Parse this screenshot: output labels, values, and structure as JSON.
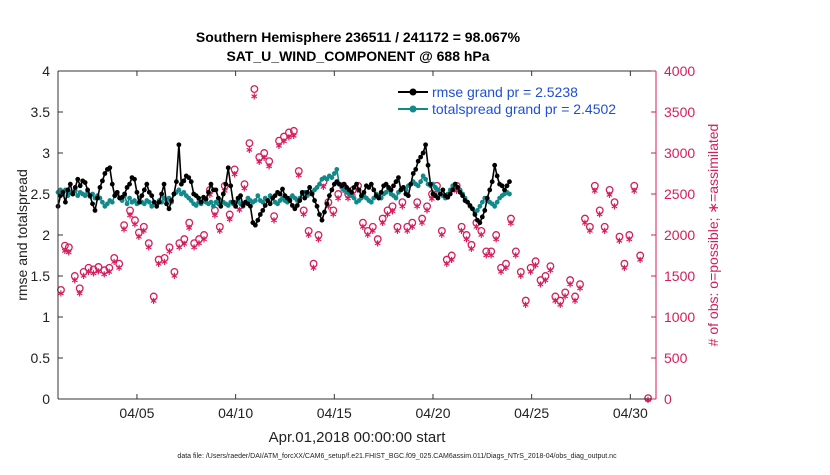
{
  "chart_data": {
    "type": "line",
    "title_line1": "Southern Hemisphere 236511 / 241172 = 98.067%",
    "title_line2": "SAT_U_WIND_COMPONENT @ 688 hPa",
    "xlabel": "Apr.01,2018 00:00:00 start",
    "ylabel_left": "rmse and totalspread",
    "ylabel_right": "# of obs: o=possible; ∗=assimilated",
    "xlim": [
      1,
      31.3
    ],
    "ylim_left": [
      0,
      4
    ],
    "ylim_right": [
      0,
      4000
    ],
    "x_ticks": [
      {
        "v": 5,
        "label": "04/05"
      },
      {
        "v": 10,
        "label": "04/10"
      },
      {
        "v": 15,
        "label": "04/15"
      },
      {
        "v": 20,
        "label": "04/20"
      },
      {
        "v": 25,
        "label": "04/25"
      },
      {
        "v": 30,
        "label": "04/30"
      }
    ],
    "y_ticks_left": [
      "0",
      "0.5",
      "1",
      "1.5",
      "2",
      "2.5",
      "3",
      "3.5",
      "4"
    ],
    "y_tick_values_left": [
      0,
      0.5,
      1,
      1.5,
      2,
      2.5,
      3,
      3.5,
      4
    ],
    "y_ticks_right": [
      "0",
      "500",
      "1000",
      "1500",
      "2000",
      "2500",
      "3000",
      "3500",
      "4000"
    ],
    "y_tick_values_right": [
      0,
      500,
      1000,
      1500,
      2000,
      2500,
      3000,
      3500,
      4000
    ],
    "colors": {
      "rmse": "#000000",
      "spread": "#12898a",
      "obs": "#d51e5b",
      "legend_text": "#1f4fd8"
    },
    "series": [
      {
        "name": "rmse grand pr = 2.5238",
        "axis": "left",
        "x_start": 1.0,
        "dx": 0.125,
        "values": [
          2.35,
          2.48,
          2.52,
          2.4,
          2.55,
          2.62,
          2.5,
          2.58,
          2.68,
          2.6,
          2.66,
          2.64,
          2.55,
          2.48,
          2.38,
          2.3,
          2.45,
          2.58,
          2.66,
          2.75,
          2.8,
          2.82,
          2.62,
          2.48,
          2.52,
          2.45,
          2.46,
          2.5,
          2.58,
          2.62,
          2.7,
          2.68,
          2.52,
          2.4,
          2.48,
          2.55,
          2.62,
          2.52,
          2.48,
          2.4,
          2.35,
          2.4,
          2.5,
          2.62,
          2.38,
          2.32,
          2.42,
          2.5,
          2.65,
          3.1,
          2.62,
          2.66,
          2.72,
          2.7,
          2.65,
          2.5,
          2.48,
          2.45,
          2.4,
          2.46,
          2.44,
          2.52,
          2.62,
          2.55,
          2.55,
          2.45,
          2.35,
          2.5,
          2.62,
          2.82,
          2.6,
          2.4,
          2.35,
          2.45,
          2.48,
          2.36,
          2.4,
          2.38,
          2.35,
          2.15,
          2.12,
          2.18,
          2.25,
          2.3,
          2.36,
          2.42,
          2.38,
          2.45,
          2.48,
          2.52,
          2.5,
          2.56,
          2.48,
          2.45,
          2.42,
          2.36,
          2.32,
          2.36,
          2.42,
          2.52,
          2.45,
          2.52,
          2.58,
          2.5,
          2.42,
          2.35,
          2.25,
          2.18,
          2.28,
          2.38,
          2.48,
          2.55,
          2.62,
          2.65,
          2.62,
          2.6,
          2.62,
          2.58,
          2.55,
          2.52,
          2.58,
          2.62,
          2.55,
          2.48,
          2.52,
          2.6,
          2.58,
          2.62,
          2.55,
          2.48,
          2.45,
          2.52,
          2.6,
          2.62,
          2.58,
          2.55,
          2.6,
          2.65,
          2.7,
          2.55,
          2.58,
          2.5,
          2.48,
          2.62,
          2.75,
          2.8,
          2.9,
          2.95,
          3.0,
          3.1,
          2.85,
          2.62,
          2.5,
          2.48,
          2.45,
          2.5,
          2.55,
          2.48,
          2.46,
          2.5,
          2.55,
          2.62,
          2.58,
          2.52,
          2.48,
          2.42,
          2.4,
          2.36,
          2.32,
          2.25,
          2.18,
          2.15,
          2.22,
          2.3,
          2.45,
          2.55,
          2.65,
          2.85,
          2.72,
          2.62,
          2.6,
          2.55,
          2.6,
          2.65
        ]
      },
      {
        "name": "totalspread grand pr = 2.4502",
        "axis": "left",
        "x_start": 1.0,
        "dx": 0.125,
        "values": [
          2.52,
          2.55,
          2.5,
          2.55,
          2.48,
          2.52,
          2.5,
          2.54,
          2.48,
          2.52,
          2.5,
          2.48,
          2.52,
          2.47,
          2.5,
          2.45,
          2.48,
          2.45,
          2.4,
          2.35,
          2.38,
          2.42,
          2.4,
          2.48,
          2.5,
          2.45,
          2.42,
          2.48,
          2.38,
          2.45,
          2.4,
          2.42,
          2.38,
          2.45,
          2.4,
          2.38,
          2.42,
          2.4,
          2.35,
          2.4,
          2.38,
          2.42,
          2.4,
          2.45,
          2.42,
          2.45,
          2.4,
          2.5,
          2.52,
          2.55,
          2.5,
          2.52,
          2.48,
          2.45,
          2.42,
          2.38,
          2.36,
          2.4,
          2.38,
          2.42,
          2.4,
          2.38,
          2.4,
          2.35,
          2.4,
          2.38,
          2.42,
          2.4,
          2.38,
          2.36,
          2.4,
          2.38,
          2.4,
          2.42,
          2.38,
          2.35,
          2.4,
          2.45,
          2.42,
          2.4,
          2.42,
          2.48,
          2.42,
          2.4,
          2.45,
          2.42,
          2.48,
          2.45,
          2.4,
          2.38,
          2.42,
          2.45,
          2.42,
          2.4,
          2.45,
          2.48,
          2.45,
          2.42,
          2.45,
          2.5,
          2.52,
          2.48,
          2.5,
          2.52,
          2.55,
          2.58,
          2.62,
          2.68,
          2.7,
          2.68,
          2.72,
          2.7,
          2.75,
          2.8,
          2.62,
          2.58,
          2.55,
          2.52,
          2.5,
          2.48,
          2.45,
          2.4,
          2.42,
          2.45,
          2.48,
          2.45,
          2.42,
          2.4,
          2.45,
          2.5,
          2.48,
          2.45,
          2.5,
          2.52,
          2.55,
          2.5,
          2.48,
          2.45,
          2.52,
          2.55,
          2.58,
          2.55,
          2.6,
          2.62,
          2.65,
          2.62,
          2.6,
          2.65,
          2.72,
          2.68,
          2.62,
          2.6,
          2.62,
          2.58,
          2.55,
          2.5,
          2.48,
          2.45,
          2.5,
          2.55,
          2.6,
          2.62,
          2.58,
          2.55,
          2.5,
          2.45,
          2.4,
          2.35,
          2.32,
          2.28,
          2.3,
          2.35,
          2.4,
          2.45,
          2.42,
          2.4,
          2.38,
          2.35,
          2.4,
          2.45,
          2.48,
          2.5,
          2.52,
          2.5
        ]
      },
      {
        "name": "obs_possible",
        "axis": "right",
        "x": [
          1.15,
          1.35,
          1.55,
          1.85,
          2.1,
          2.3,
          2.55,
          2.8,
          3.05,
          3.35,
          3.6,
          3.85,
          4.1,
          4.35,
          4.65,
          4.9,
          5.1,
          5.35,
          5.6,
          5.85,
          6.1,
          6.4,
          6.65,
          6.9,
          7.15,
          7.4,
          7.65,
          7.9,
          8.15,
          8.4,
          8.7,
          8.95,
          9.2,
          9.45,
          9.7,
          9.95,
          10.2,
          10.45,
          10.7,
          10.95,
          11.2,
          11.45,
          11.7,
          11.95,
          12.2,
          12.45,
          12.7,
          12.95,
          13.2,
          13.45,
          13.7,
          13.95,
          14.2,
          14.45,
          14.7,
          14.95,
          15.2,
          15.45,
          15.7,
          15.95,
          16.2,
          16.45,
          16.7,
          16.95,
          17.2,
          17.45,
          17.7,
          17.95,
          18.2,
          18.45,
          18.7,
          18.95,
          19.2,
          19.45,
          19.7,
          19.95,
          20.2,
          20.45,
          20.7,
          20.95,
          21.2,
          21.45,
          21.7,
          21.95,
          22.2,
          22.45,
          22.7,
          22.95,
          23.2,
          23.45,
          23.7,
          23.95,
          24.2,
          24.45,
          24.7,
          24.95,
          25.2,
          25.45,
          25.7,
          25.95,
          26.2,
          26.45,
          26.7,
          26.95,
          27.2,
          27.45,
          27.7,
          27.95,
          28.2,
          28.45,
          28.7,
          28.95,
          29.2,
          29.45,
          29.7,
          29.95,
          30.2,
          30.5,
          30.9
        ],
        "values": [
          1330,
          1870,
          1850,
          1500,
          1350,
          1550,
          1600,
          1580,
          1610,
          1570,
          1600,
          1720,
          1650,
          2120,
          2300,
          2180,
          2030,
          2100,
          1900,
          1250,
          1700,
          1720,
          1850,
          1550,
          1900,
          1950,
          2150,
          1900,
          1950,
          2000,
          2550,
          2300,
          2100,
          2600,
          2250,
          2800,
          2360,
          2620,
          3120,
          3780,
          2950,
          3000,
          2900,
          2230,
          3150,
          3200,
          3250,
          3270,
          2780,
          2300,
          2050,
          1650,
          2000,
          2650,
          2400,
          2300,
          2500,
          2600,
          2500,
          2550,
          2600,
          2150,
          2050,
          2100,
          1950,
          2200,
          2300,
          2350,
          2100,
          2400,
          2100,
          2150,
          2400,
          2200,
          2350,
          2500,
          2600,
          2050,
          1700,
          1750,
          2600,
          2100,
          2000,
          1880,
          2150,
          2050,
          1800,
          1800,
          2000,
          1600,
          1650,
          2200,
          1800,
          1550,
          1200,
          1600,
          1680,
          1450,
          1500,
          1620,
          1250,
          1200,
          1300,
          1450,
          1250,
          1400,
          2200,
          2100,
          2600,
          2300,
          2100,
          2550,
          2400,
          1980,
          1650,
          2000,
          2600,
          1750,
          10
        ]
      },
      {
        "name": "obs_assimilated",
        "axis": "right",
        "x": [
          1.15,
          1.35,
          1.55,
          1.85,
          2.1,
          2.3,
          2.55,
          2.8,
          3.05,
          3.35,
          3.6,
          3.85,
          4.1,
          4.35,
          4.65,
          4.9,
          5.1,
          5.35,
          5.6,
          5.85,
          6.1,
          6.4,
          6.65,
          6.9,
          7.15,
          7.4,
          7.65,
          7.9,
          8.15,
          8.4,
          8.7,
          8.95,
          9.2,
          9.45,
          9.7,
          9.95,
          10.2,
          10.45,
          10.7,
          10.95,
          11.2,
          11.45,
          11.7,
          11.95,
          12.2,
          12.45,
          12.7,
          12.95,
          13.2,
          13.45,
          13.7,
          13.95,
          14.2,
          14.45,
          14.7,
          14.95,
          15.2,
          15.45,
          15.7,
          15.95,
          16.2,
          16.45,
          16.7,
          16.95,
          17.2,
          17.45,
          17.7,
          17.95,
          18.2,
          18.45,
          18.7,
          18.95,
          19.2,
          19.45,
          19.7,
          19.95,
          20.2,
          20.45,
          20.7,
          20.95,
          21.2,
          21.45,
          21.7,
          21.95,
          22.2,
          22.45,
          22.7,
          22.95,
          23.2,
          23.45,
          23.7,
          23.95,
          24.2,
          24.45,
          24.7,
          24.95,
          25.2,
          25.45,
          25.7,
          25.95,
          26.2,
          26.45,
          26.7,
          26.95,
          27.2,
          27.45,
          27.7,
          27.95,
          28.2,
          28.45,
          28.7,
          28.95,
          29.2,
          29.45,
          29.7,
          29.95,
          30.2,
          30.5,
          30.9
        ],
        "values": [
          1300,
          1820,
          1800,
          1460,
          1300,
          1510,
          1560,
          1540,
          1570,
          1530,
          1560,
          1680,
          1610,
          2080,
          2250,
          2140,
          1990,
          2060,
          1860,
          1210,
          1660,
          1680,
          1810,
          1510,
          1860,
          1900,
          2100,
          1860,
          1910,
          1960,
          2500,
          2250,
          2060,
          2550,
          2200,
          2750,
          2320,
          2580,
          3050,
          3700,
          2900,
          2950,
          2850,
          2190,
          3100,
          3150,
          3200,
          3220,
          2740,
          2260,
          2010,
          1610,
          1960,
          2600,
          2360,
          2260,
          2460,
          2560,
          2460,
          2510,
          2560,
          2110,
          2010,
          2060,
          1910,
          2160,
          2260,
          2300,
          2060,
          2360,
          2060,
          2110,
          2360,
          2160,
          2310,
          2450,
          2550,
          2010,
          1660,
          1710,
          2550,
          2060,
          1960,
          1840,
          2110,
          2010,
          1760,
          1760,
          1960,
          1560,
          1610,
          2150,
          1760,
          1510,
          1160,
          1560,
          1640,
          1410,
          1460,
          1580,
          1210,
          1160,
          1260,
          1410,
          1210,
          1360,
          2160,
          2060,
          2550,
          2260,
          2060,
          2500,
          2360,
          1940,
          1610,
          1960,
          2550,
          1710,
          0
        ]
      }
    ],
    "footer_note": "data file: /Users/raeder/DAI/ATM_forcXX/CAM6_setup/f.e21.FHIST_BGC.f09_025.CAM6assim.011/Diags_NTrS_2018-04/obs_diag_output.nc"
  }
}
